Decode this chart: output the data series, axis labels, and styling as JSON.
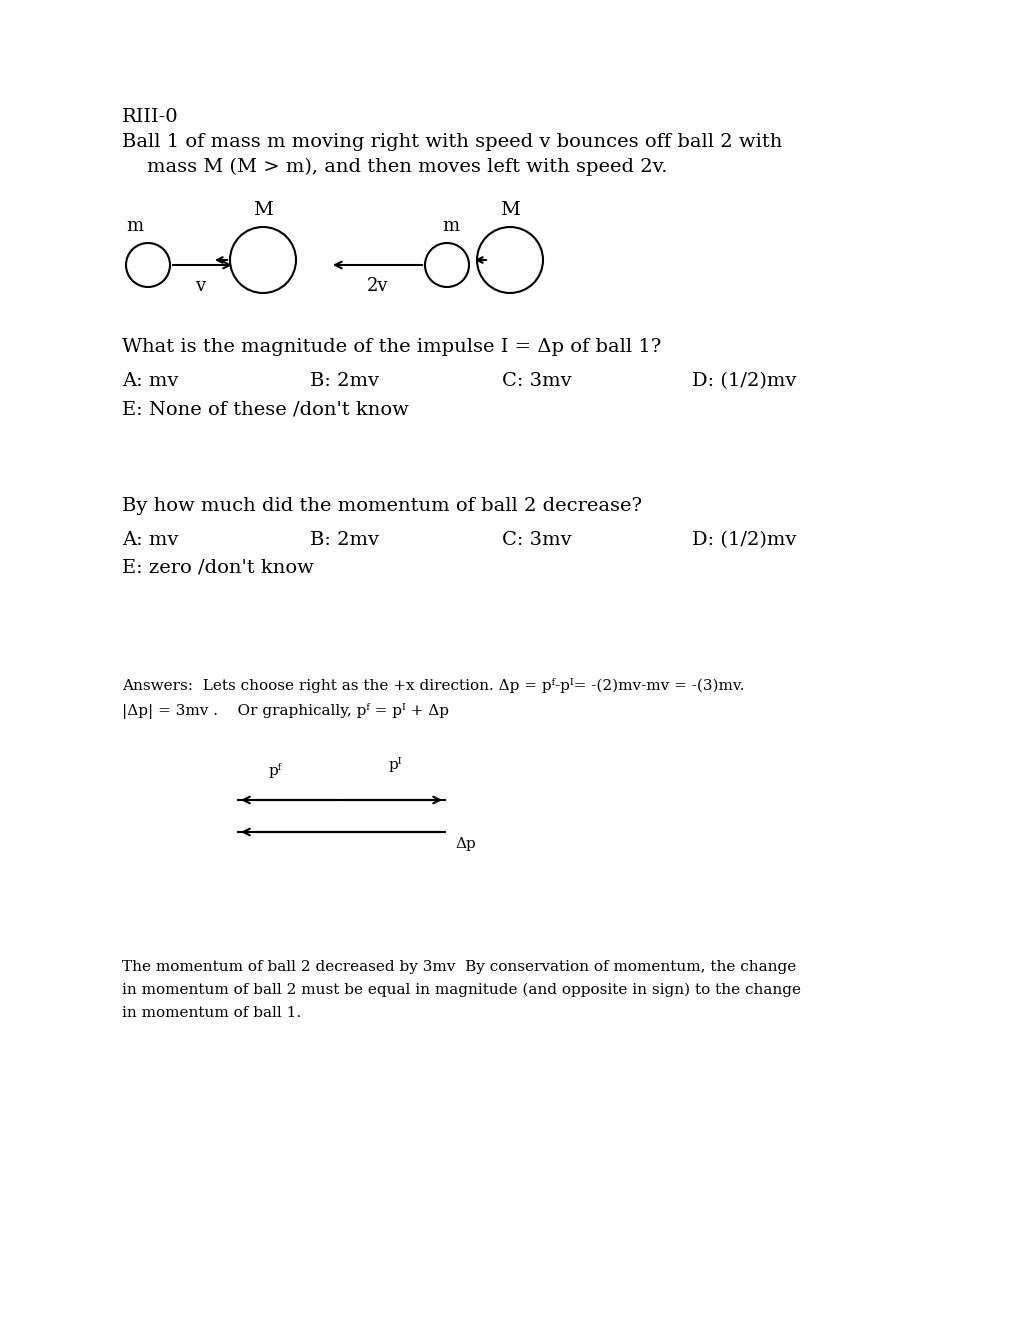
{
  "bg_color": "#ffffff",
  "title_line1": "RIII-0",
  "title_line2": "Ball 1 of mass m moving right with speed v bounces off ball 2 with",
  "title_line3": "    mass M (M > m), and then moves left with speed 2v.",
  "q1": "What is the magnitude of the impulse I = Δp of ball 1?",
  "q1_A": "A: mv",
  "q1_B": "B: 2mv",
  "q1_C": "C: 3mv",
  "q1_D": "D: (1/2)mv",
  "q1_E": "E: None of these /don't know",
  "q2": "By how much did the momentum of ball 2 decrease?",
  "q2_A": "A: mv",
  "q2_B": "B: 2mv",
  "q2_C": "C: 3mv",
  "q2_D": "D: (1/2)mv",
  "q2_E": "E: zero /don't know",
  "ans1": "Answers:  Lets choose right as the +x direction. Δp = pᶠ-pᴵ= -(2)mv-mv = -(3)mv.",
  "ans2a": "|Δp| = 3mv .    Or graphically, p",
  "ans2b": " = p",
  "ans2c": " + Δp",
  "final1": "The momentum of ball 2 decreased by 3mv  By conservation of momentum, the change",
  "final2": "in momentum of ball 2 must be equal in magnitude (and opposite in sign) to the change",
  "final3": "in momentum of ball 1.",
  "fs": 14,
  "fs_small": 11,
  "fs_diagram": 13
}
